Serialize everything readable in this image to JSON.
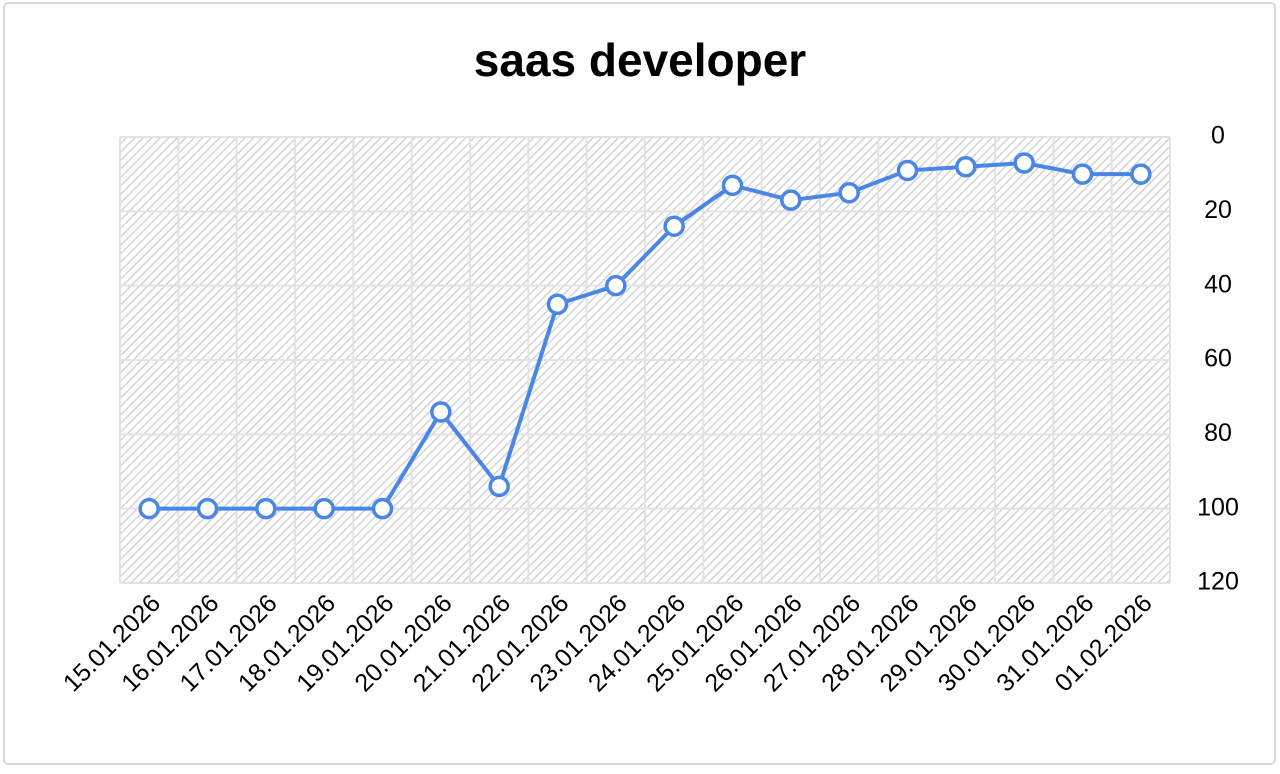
{
  "chart_data": {
    "type": "line",
    "title": "saas developer",
    "categories": [
      "15.01.2026",
      "16.01.2026",
      "17.01.2026",
      "18.01.2026",
      "19.01.2026",
      "20.01.2026",
      "21.01.2026",
      "22.01.2026",
      "23.01.2026",
      "24.01.2026",
      "25.01.2026",
      "26.01.2026",
      "27.01.2026",
      "28.01.2026",
      "29.01.2026",
      "30.01.2026",
      "31.01.2026",
      "01.02.2026"
    ],
    "series": [
      {
        "color": "#4a86e8",
        "values": [
          100,
          100,
          100,
          100,
          100,
          74,
          94,
          45,
          40,
          24,
          13,
          17,
          15,
          9,
          8,
          7,
          10,
          10
        ]
      }
    ],
    "ylim": [
      0,
      120
    ],
    "yticks": [
      0,
      20,
      40,
      60,
      80,
      100,
      120
    ],
    "y_reversed": true,
    "y_axis_side": "right",
    "grid": true
  }
}
